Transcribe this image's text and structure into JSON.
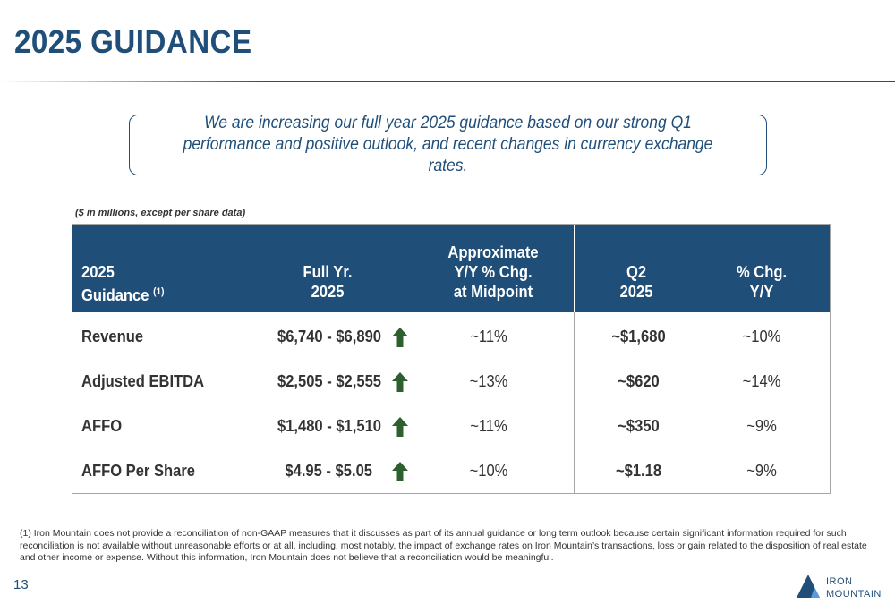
{
  "title": "2025 GUIDANCE",
  "callout": "We are increasing our full year 2025 guidance based on our strong Q1 performance and positive outlook, and recent changes in currency exchange rates.",
  "units_note": "($ in millions, except per share data)",
  "table": {
    "headers": {
      "label": [
        "2025",
        "Guidance"
      ],
      "label_sup": "(1)",
      "full_year": [
        "Full Yr.",
        "2025"
      ],
      "approx": [
        "Approximate",
        "Y/Y % Chg.",
        "at Midpoint"
      ],
      "q2": [
        "Q2",
        "2025"
      ],
      "pct": [
        "% Chg.",
        "Y/Y"
      ]
    },
    "rows": [
      {
        "label": "Revenue",
        "full_year": "$6,740 - $6,890",
        "approx": "~11%",
        "q2": "~$1,680",
        "pct": "~10%"
      },
      {
        "label": "Adjusted EBITDA",
        "full_year": "$2,505 - $2,555",
        "approx": "~13%",
        "q2": "~$620",
        "pct": "~14%"
      },
      {
        "label": "AFFO",
        "full_year": "$1,480 - $1,510",
        "approx": "~11%",
        "q2": "~$350",
        "pct": "~9%"
      },
      {
        "label": "AFFO Per Share",
        "full_year": "$4.95 - $5.05",
        "approx": "~10%",
        "q2": "~$1.18",
        "pct": "~9%"
      }
    ],
    "arrow_icon": "arrow-up-icon",
    "arrow_color": "#2e5f2e"
  },
  "footnote": "(1) Iron Mountain does not provide a reconciliation of non-GAAP measures that it discusses as part of its annual guidance or long term outlook because certain significant information required for such reconciliation is not available without unreasonable efforts or at all, including, most notably, the impact of exchange rates on Iron Mountain’s transactions, loss or gain related to the disposition of real estate and other income or expense. Without this information, Iron Mountain does not believe that a reconciliation would be meaningful.",
  "page_number": "13",
  "logo": {
    "line1": "IRON",
    "line2": "MOUNTAIN"
  },
  "colors": {
    "brand": "#1f4e79",
    "header_bg": "#1f4e79",
    "border": "#a6a6a6"
  }
}
